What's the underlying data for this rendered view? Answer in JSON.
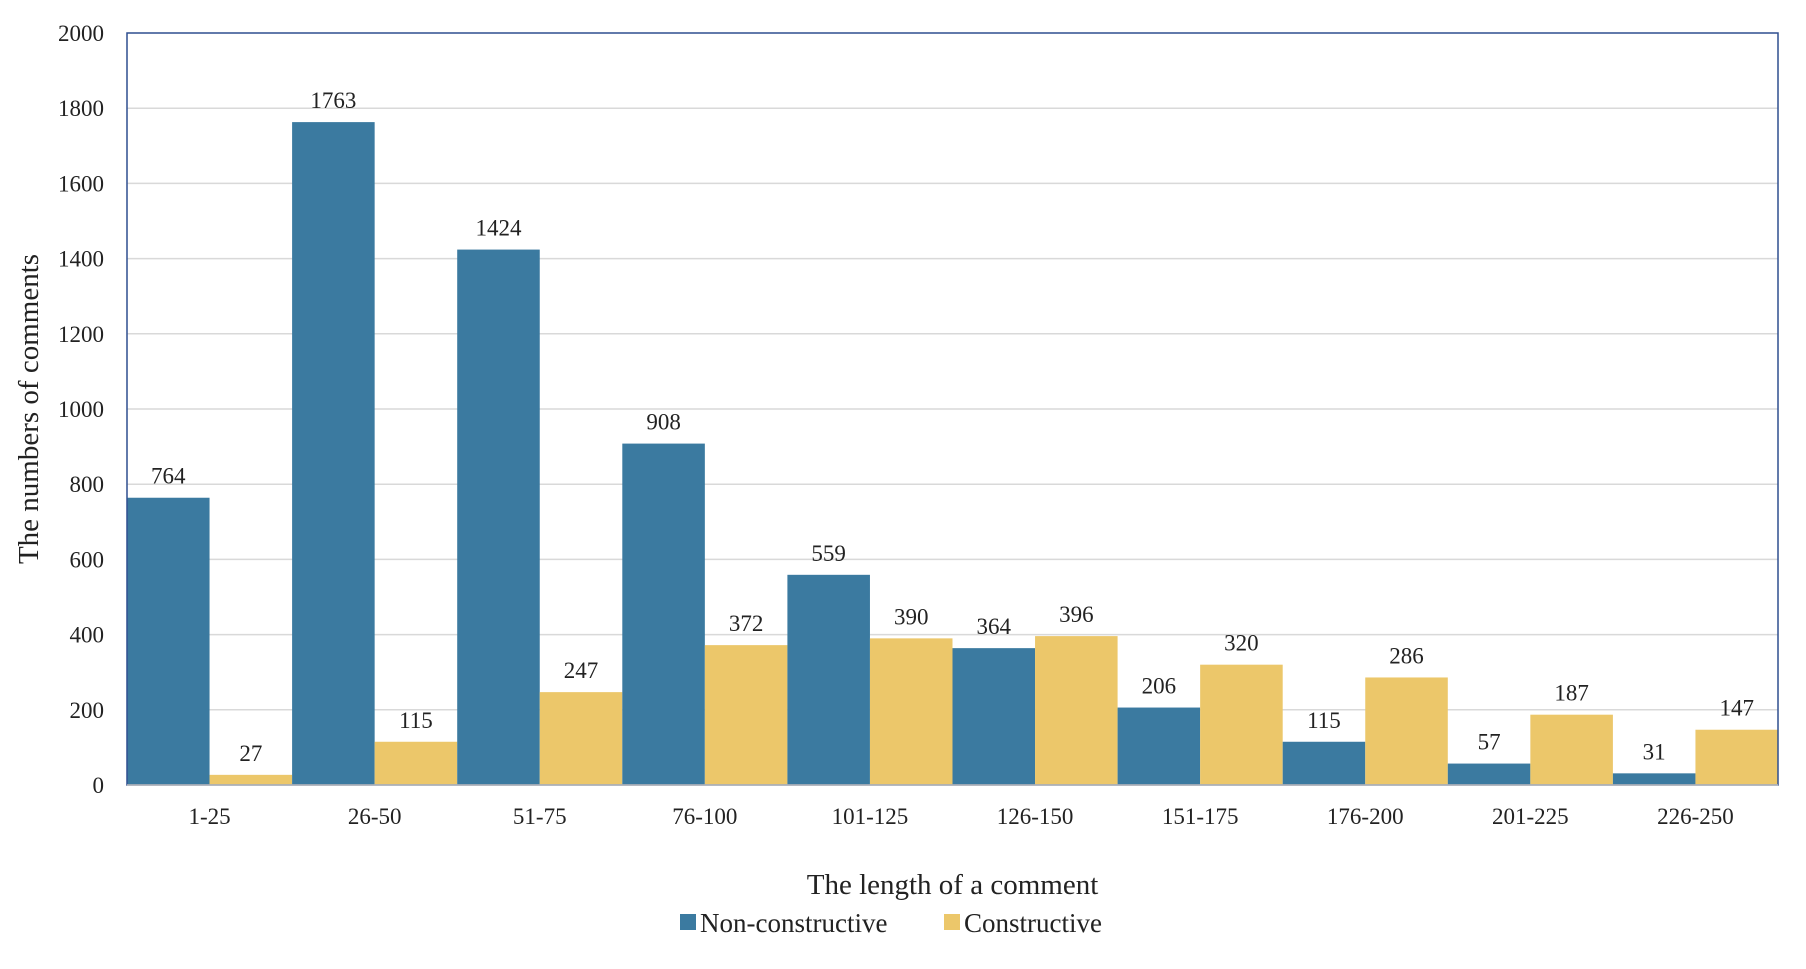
{
  "chart_data": {
    "type": "bar",
    "title": "",
    "xlabel": "The length of a comment",
    "ylabel": "The numbers of comments",
    "ylim": [
      0,
      2000
    ],
    "yticks": [
      0,
      200,
      400,
      600,
      800,
      1000,
      1200,
      1400,
      1600,
      1800,
      2000
    ],
    "grid": true,
    "legend_position": "bottom",
    "categories": [
      "1-25",
      "26-50",
      "51-75",
      "76-100",
      "101-125",
      "126-150",
      "151-175",
      "176-200",
      "201-225",
      "226-250"
    ],
    "series": [
      {
        "name": "Non-constructive",
        "color": "#3b7aa0",
        "values": [
          764,
          1763,
          1424,
          908,
          559,
          364,
          206,
          115,
          57,
          31
        ]
      },
      {
        "name": "Constructive",
        "color": "#ecc76a",
        "values": [
          27,
          115,
          247,
          372,
          390,
          396,
          320,
          286,
          187,
          147
        ]
      }
    ]
  }
}
